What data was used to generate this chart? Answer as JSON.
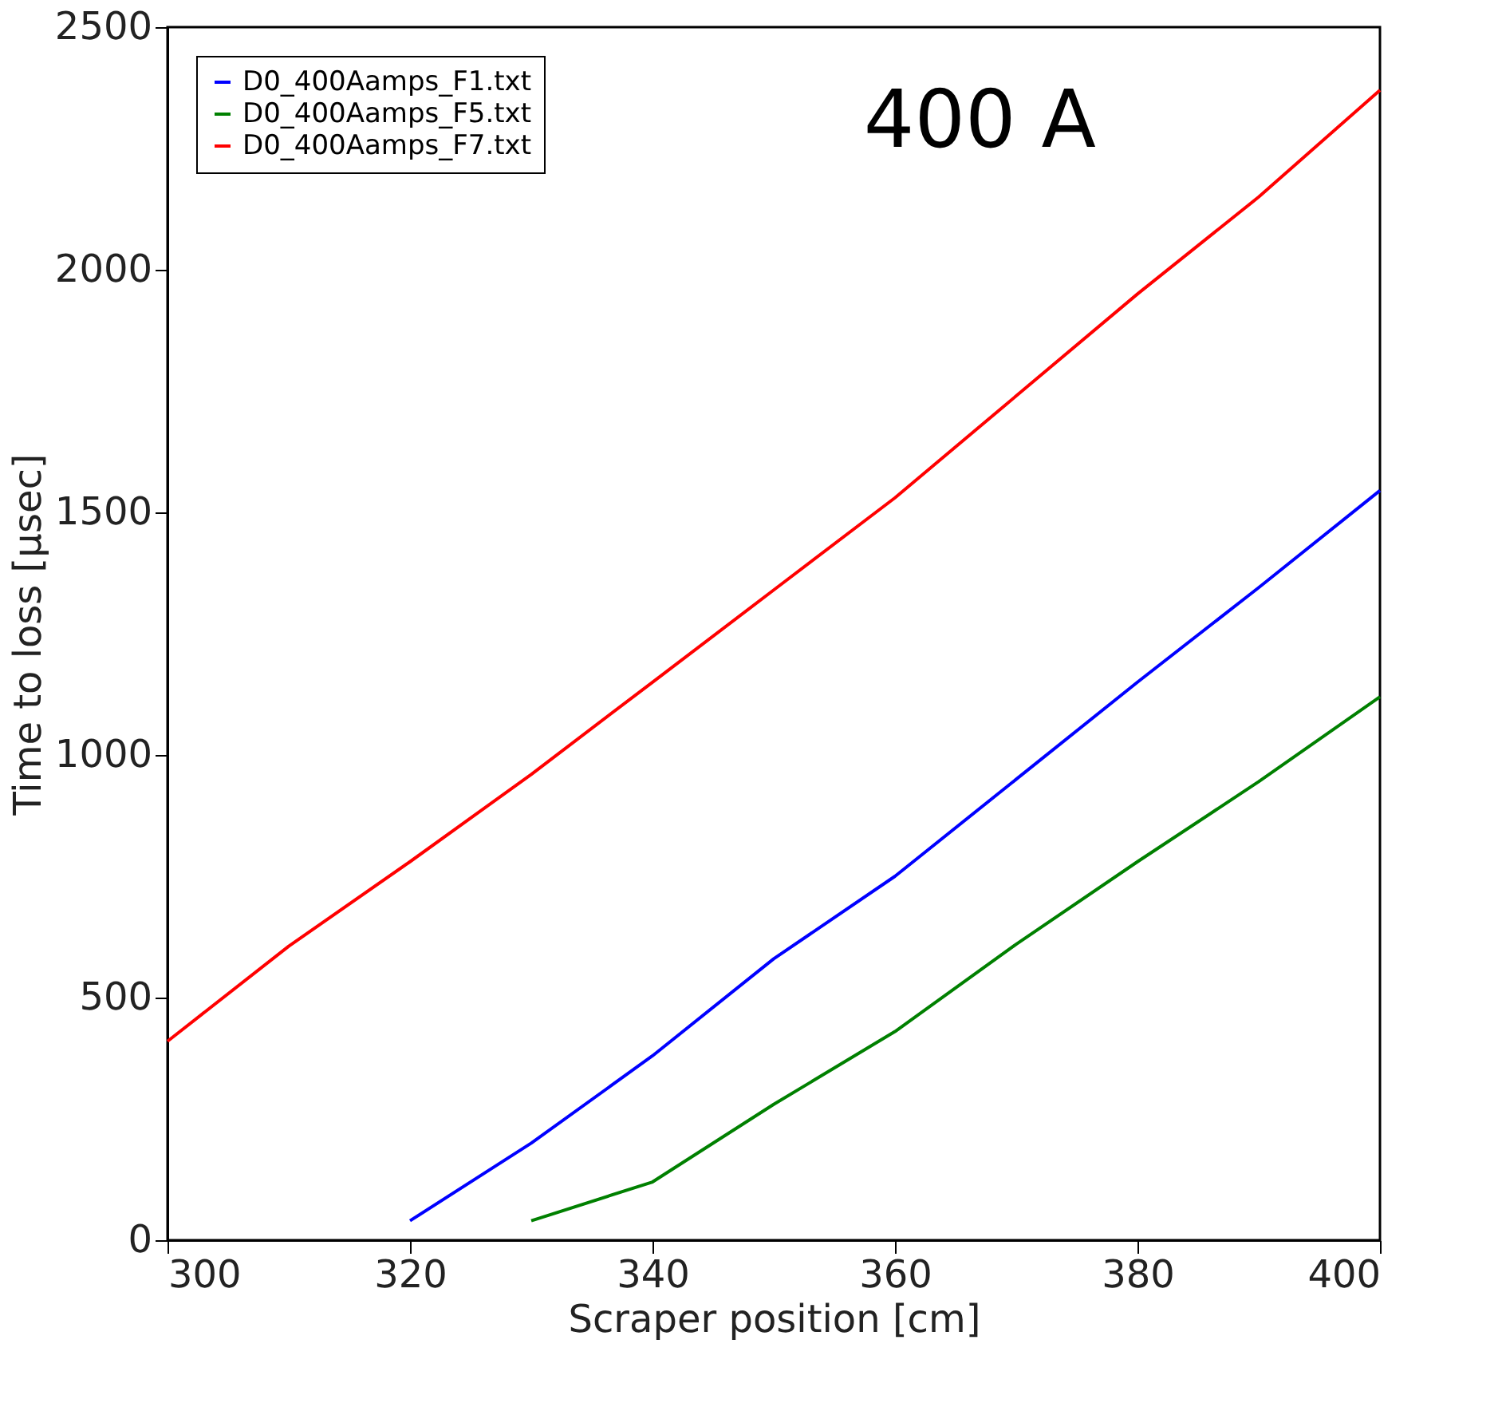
{
  "chart_data": {
    "type": "line",
    "xlabel": "Scraper position [cm]",
    "ylabel": "Time to loss [μsec]",
    "xlim": [
      300,
      400
    ],
    "xticks": [
      300,
      320,
      340,
      360,
      380,
      400
    ],
    "ylim": [
      0,
      2500
    ],
    "yticks": [
      0,
      500,
      1000,
      1500,
      2000,
      2500
    ],
    "grid": false,
    "legend": "top left",
    "line_style": "solid",
    "annotations": [
      "400 A"
    ],
    "series": [
      {
        "name": "D0_400Aamps_F1.txt",
        "color": "#0000ff",
        "x": [
          320,
          330,
          340,
          350,
          360,
          370,
          380,
          390,
          400
        ],
        "values": [
          40,
          200,
          380,
          580,
          750,
          950,
          1150,
          1345,
          1545
        ]
      },
      {
        "name": "D0_400Aamps_F5.txt",
        "color": "#008000",
        "x": [
          330,
          340,
          350,
          360,
          370,
          380,
          390,
          400
        ],
        "values": [
          40,
          120,
          280,
          430,
          610,
          780,
          945,
          1120
        ]
      },
      {
        "name": "D0_400Aamps_F7.txt",
        "color": "#ff0000",
        "x": [
          300,
          310,
          320,
          330,
          340,
          350,
          360,
          370,
          380,
          390,
          400
        ],
        "values": [
          410,
          606,
          780,
          960,
          1150,
          1340,
          1530,
          1740,
          1950,
          2150,
          2370
        ]
      }
    ]
  }
}
